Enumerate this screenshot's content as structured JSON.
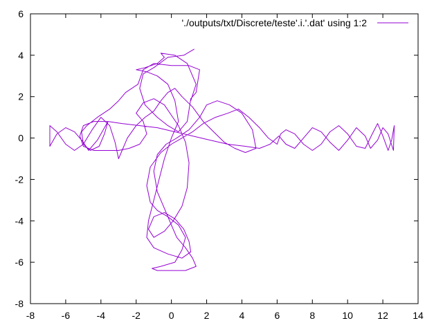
{
  "chart_data": {
    "type": "line",
    "title": "",
    "xlabel": "",
    "ylabel": "",
    "xlim": [
      -8,
      14
    ],
    "ylim": [
      -8,
      6
    ],
    "xticks": [
      "-8",
      "-6",
      "-4",
      "-2",
      "0",
      "2",
      "4",
      "6",
      "8",
      "10",
      "12",
      "14"
    ],
    "yticks": [
      "-8",
      "-6",
      "-4",
      "-2",
      "0",
      "2",
      "4",
      "6"
    ],
    "grid": false,
    "legend_position": "top-right",
    "series": [
      {
        "name": "'./outputs/txt/Discrete/teste'.i.'.dat' using 1:2",
        "color": "#9400d3",
        "points": [
          [
            1.3,
            4.3
          ],
          [
            0.7,
            4.0
          ],
          [
            -0.2,
            3.9
          ],
          [
            -1.0,
            3.4
          ],
          [
            -1.6,
            3.1
          ],
          [
            -1.8,
            2.4
          ],
          [
            -1.5,
            1.6
          ],
          [
            -0.8,
            1.0
          ],
          [
            -0.2,
            0.6
          ],
          [
            0.4,
            0.3
          ],
          [
            0.9,
            0.8
          ],
          [
            1.1,
            1.9
          ],
          [
            1.4,
            2.2
          ],
          [
            1.6,
            3.3
          ],
          [
            1.0,
            3.5
          ],
          [
            0.0,
            3.5
          ],
          [
            -1.0,
            3.6
          ],
          [
            -1.6,
            3.3
          ],
          [
            -1.9,
            2.6
          ],
          [
            -2.6,
            2.2
          ],
          [
            -3.0,
            1.8
          ],
          [
            -3.5,
            1.4
          ],
          [
            -4.2,
            1.0
          ],
          [
            -4.8,
            0.6
          ],
          [
            -5.1,
            0.3
          ],
          [
            -5.0,
            -0.3
          ],
          [
            -4.6,
            -0.6
          ],
          [
            -4.1,
            -0.4
          ],
          [
            -3.8,
            0.2
          ],
          [
            -3.6,
            0.8
          ],
          [
            -3.8,
            0.5
          ],
          [
            -4.2,
            -0.1
          ],
          [
            -4.7,
            -0.6
          ],
          [
            -5.0,
            -0.2
          ],
          [
            -5.5,
            0.3
          ],
          [
            -6.0,
            0.5
          ],
          [
            -6.5,
            0.2
          ],
          [
            -6.9,
            -0.4
          ],
          [
            -6.9,
            0.6
          ],
          [
            -6.5,
            0.3
          ],
          [
            -6.0,
            -0.3
          ],
          [
            -5.5,
            -0.6
          ],
          [
            -5.0,
            -0.3
          ],
          [
            -4.5,
            0.4
          ],
          [
            -4.0,
            1.0
          ],
          [
            -3.5,
            0.6
          ],
          [
            -3.2,
            -0.2
          ],
          [
            -3.0,
            -1.0
          ],
          [
            -2.8,
            -0.6
          ],
          [
            -2.5,
            0.0
          ],
          [
            -2.0,
            0.6
          ],
          [
            -1.5,
            1.0
          ],
          [
            -1.0,
            1.3
          ],
          [
            -0.6,
            1.8
          ],
          [
            -0.2,
            2.2
          ],
          [
            0.2,
            2.4
          ],
          [
            0.6,
            2.0
          ],
          [
            1.2,
            1.5
          ],
          [
            1.8,
            0.8
          ],
          [
            2.4,
            0.3
          ],
          [
            3.0,
            -0.2
          ],
          [
            3.6,
            -0.5
          ],
          [
            4.2,
            -0.7
          ],
          [
            4.8,
            -0.5
          ],
          [
            4.6,
            0.4
          ],
          [
            4.0,
            1.2
          ],
          [
            3.3,
            1.6
          ],
          [
            2.6,
            1.8
          ],
          [
            2.0,
            1.6
          ],
          [
            1.6,
            1.0
          ],
          [
            1.0,
            0.4
          ],
          [
            0.3,
            0.0
          ],
          [
            -0.3,
            -0.3
          ],
          [
            -0.8,
            -0.8
          ],
          [
            -1.0,
            -1.6
          ],
          [
            -0.8,
            -2.6
          ],
          [
            -0.4,
            -3.4
          ],
          [
            0.0,
            -4.2
          ],
          [
            0.3,
            -4.8
          ],
          [
            0.8,
            -5.3
          ],
          [
            1.2,
            -5.8
          ],
          [
            1.4,
            -6.2
          ],
          [
            0.8,
            -6.4
          ],
          [
            0.0,
            -6.4
          ],
          [
            -0.8,
            -6.4
          ],
          [
            -1.1,
            -6.3
          ],
          [
            -0.6,
            -6.2
          ],
          [
            0.2,
            -6.0
          ],
          [
            0.6,
            -5.4
          ],
          [
            0.8,
            -4.8
          ],
          [
            0.4,
            -4.2
          ],
          [
            -0.2,
            -3.8
          ],
          [
            -0.8,
            -3.5
          ],
          [
            -1.2,
            -3.1
          ],
          [
            -1.4,
            -2.3
          ],
          [
            -1.2,
            -1.4
          ],
          [
            -0.6,
            -0.7
          ],
          [
            0.0,
            -0.3
          ],
          [
            0.6,
            0.0
          ],
          [
            1.2,
            0.3
          ],
          [
            1.8,
            0.7
          ],
          [
            2.5,
            1.0
          ],
          [
            3.2,
            1.2
          ],
          [
            3.8,
            1.4
          ],
          [
            4.4,
            1.0
          ],
          [
            5.0,
            0.5
          ],
          [
            5.5,
            0.0
          ],
          [
            6.0,
            -0.3
          ],
          [
            6.2,
            0.2
          ],
          [
            6.5,
            0.4
          ],
          [
            7.0,
            0.2
          ],
          [
            7.5,
            -0.3
          ],
          [
            8.0,
            -0.6
          ],
          [
            8.5,
            -0.3
          ],
          [
            9.0,
            0.3
          ],
          [
            9.5,
            0.6
          ],
          [
            10.0,
            0.2
          ],
          [
            10.5,
            -0.4
          ],
          [
            11.0,
            -0.5
          ],
          [
            11.4,
            0.2
          ],
          [
            11.7,
            0.7
          ],
          [
            12.0,
            0.1
          ],
          [
            12.3,
            -0.6
          ],
          [
            12.5,
            -0.1
          ],
          [
            12.65,
            0.6
          ],
          [
            12.6,
            -0.6
          ],
          [
            12.3,
            0.2
          ],
          [
            12.0,
            0.5
          ],
          [
            11.7,
            -0.1
          ],
          [
            11.3,
            -0.5
          ],
          [
            11.0,
            0.1
          ],
          [
            10.5,
            0.5
          ],
          [
            10.0,
            -0.1
          ],
          [
            9.5,
            -0.6
          ],
          [
            9.0,
            -0.2
          ],
          [
            8.5,
            0.3
          ],
          [
            8.0,
            0.5
          ],
          [
            7.5,
            0.0
          ],
          [
            7.0,
            -0.5
          ],
          [
            6.5,
            -0.3
          ],
          [
            6.1,
            0.1
          ],
          [
            5.6,
            -0.3
          ],
          [
            5.0,
            -0.5
          ],
          [
            4.2,
            -0.4
          ],
          [
            3.2,
            -0.3
          ],
          [
            2.2,
            -0.1
          ],
          [
            1.2,
            0.1
          ],
          [
            0.2,
            0.3
          ],
          [
            -0.8,
            0.5
          ],
          [
            -1.8,
            0.6
          ],
          [
            -2.8,
            0.7
          ],
          [
            -3.6,
            0.8
          ],
          [
            -4.4,
            0.8
          ],
          [
            -5.0,
            0.6
          ],
          [
            -5.2,
            0.1
          ],
          [
            -5.0,
            -0.4
          ],
          [
            -4.4,
            -0.6
          ],
          [
            -3.7,
            -0.6
          ],
          [
            -3.0,
            -0.6
          ],
          [
            -2.4,
            -0.5
          ],
          [
            -1.8,
            -0.3
          ],
          [
            -1.4,
            0.2
          ],
          [
            -1.6,
            0.8
          ],
          [
            -2.0,
            1.2
          ],
          [
            -1.6,
            1.7
          ],
          [
            -1.0,
            1.9
          ],
          [
            -0.4,
            1.6
          ],
          [
            0.0,
            1.1
          ],
          [
            0.4,
            0.6
          ],
          [
            0.8,
            -0.2
          ],
          [
            1.0,
            -1.2
          ],
          [
            0.9,
            -2.4
          ],
          [
            0.6,
            -3.3
          ],
          [
            0.1,
            -4.0
          ],
          [
            -0.4,
            -4.5
          ],
          [
            -1.0,
            -4.8
          ],
          [
            -1.3,
            -4.4
          ],
          [
            -1.0,
            -3.8
          ],
          [
            -0.4,
            -3.6
          ],
          [
            0.2,
            -3.9
          ],
          [
            0.7,
            -4.4
          ],
          [
            1.0,
            -5.0
          ],
          [
            1.1,
            -5.5
          ],
          [
            0.6,
            -5.8
          ],
          [
            -0.2,
            -5.6
          ],
          [
            -1.0,
            -5.3
          ],
          [
            -1.4,
            -4.8
          ],
          [
            -1.3,
            -4.0
          ],
          [
            -1.0,
            -3.0
          ],
          [
            -0.7,
            -2.0
          ],
          [
            -0.4,
            -1.0
          ],
          [
            0.0,
            0.0
          ],
          [
            0.4,
            0.8
          ],
          [
            0.2,
            1.8
          ],
          [
            -0.2,
            2.6
          ],
          [
            -0.8,
            3.0
          ],
          [
            -1.4,
            3.2
          ],
          [
            -2.0,
            3.3
          ],
          [
            -1.5,
            3.4
          ],
          [
            -0.8,
            3.6
          ],
          [
            -0.4,
            3.9
          ],
          [
            -0.6,
            4.1
          ],
          [
            0.2,
            4.0
          ],
          [
            0.9,
            3.6
          ],
          [
            1.4,
            2.6
          ],
          [
            1.1,
            1.8
          ]
        ]
      }
    ]
  }
}
